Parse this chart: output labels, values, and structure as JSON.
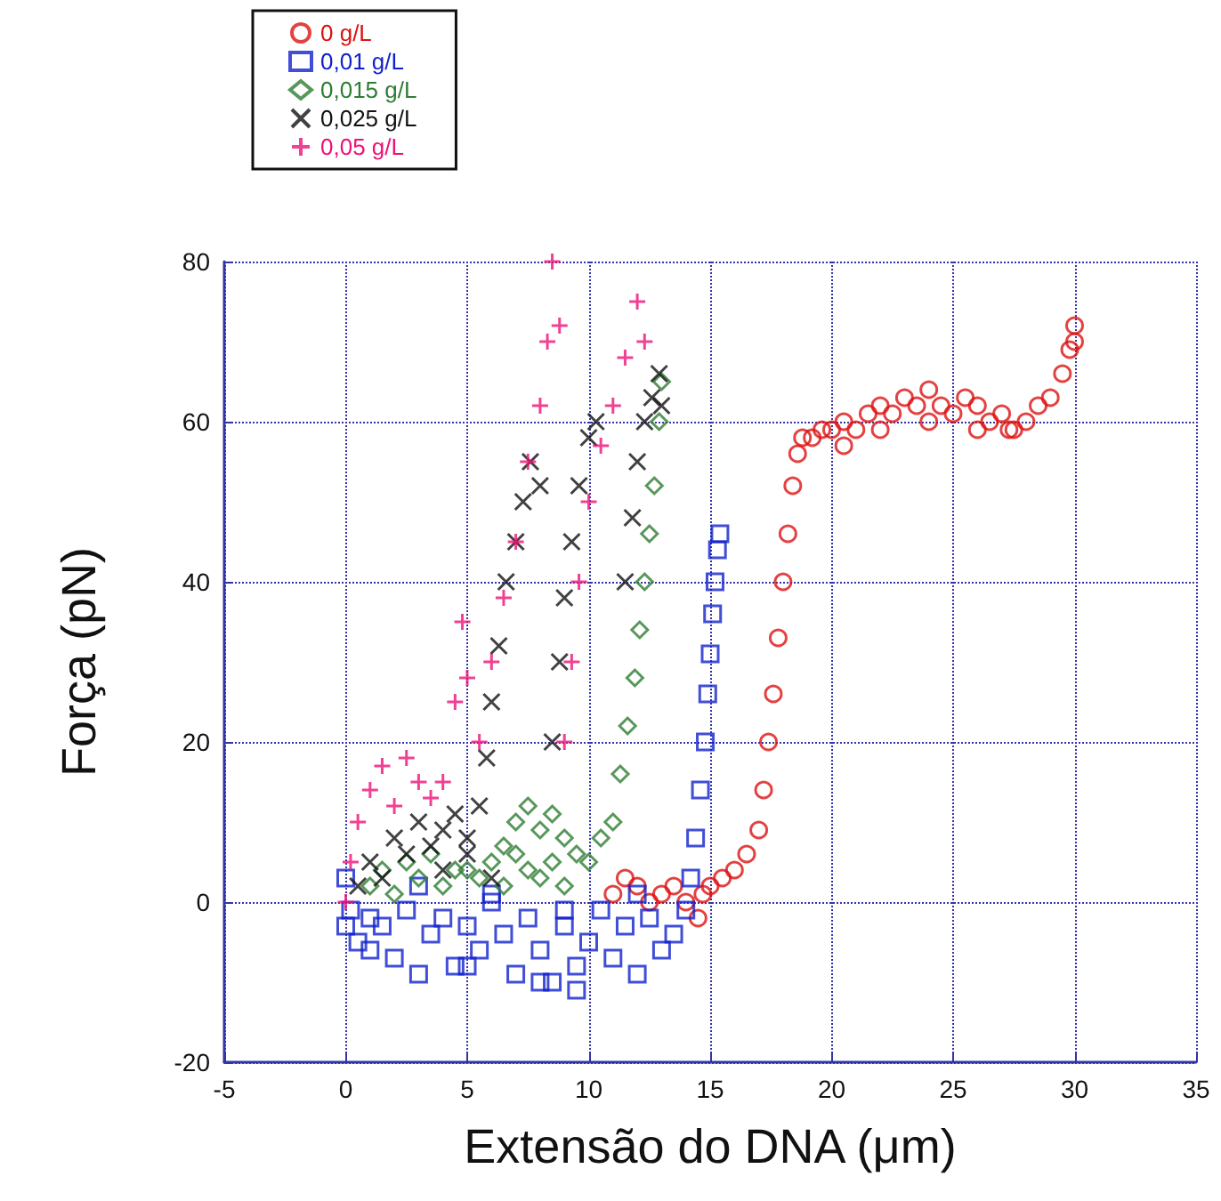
{
  "chart_data": {
    "type": "scatter",
    "xlabel": "Extensão do DNA (μm)",
    "ylabel": "Força (pN)",
    "xlim": [
      -5,
      35
    ],
    "xticks": [
      -5,
      0,
      5,
      10,
      15,
      20,
      25,
      30,
      35
    ],
    "ylim": [
      -20,
      80
    ],
    "yticks": [
      -20,
      0,
      20,
      40,
      60,
      80
    ],
    "grid": true,
    "legend": "top left",
    "series": [
      {
        "name": "0 g/L",
        "color": "#dd1111",
        "marker": "circle",
        "x": [
          11,
          11.5,
          12,
          12.5,
          13,
          13.5,
          14,
          14.5,
          14.7,
          15,
          15.5,
          16,
          16.5,
          17,
          17.2,
          17.4,
          17.6,
          17.8,
          18,
          18.2,
          18.4,
          18.6,
          18.8,
          19.2,
          19.6,
          20,
          20.5,
          21,
          21.5,
          22,
          22.5,
          23,
          23.5,
          24,
          24.5,
          25,
          25.5,
          26,
          26.5,
          27,
          27.5,
          28,
          28.5,
          29,
          29.5,
          29.8,
          30,
          30,
          20.5,
          22,
          24,
          26,
          27.3
        ],
        "values": [
          1,
          3,
          2,
          0,
          1,
          2,
          0,
          -2,
          1,
          2,
          3,
          4,
          6,
          9,
          14,
          20,
          26,
          33,
          40,
          46,
          52,
          56,
          58,
          58,
          59,
          59,
          60,
          59,
          61,
          62,
          61,
          63,
          62,
          64,
          62,
          61,
          63,
          62,
          60,
          61,
          59,
          60,
          62,
          63,
          66,
          69,
          72,
          70,
          57,
          59,
          60,
          59,
          59
        ]
      },
      {
        "name": "0,01 g/L",
        "color": "#1122cc",
        "marker": "square",
        "x": [
          0,
          0,
          0.2,
          0.5,
          1,
          1.5,
          2,
          2.5,
          3,
          3.5,
          4,
          4.5,
          5,
          5.5,
          6,
          6.5,
          7,
          7.5,
          8,
          8.5,
          9,
          9.5,
          10,
          10.5,
          11,
          11.5,
          12,
          12.5,
          13,
          13.5,
          14,
          14.2,
          14.4,
          14.6,
          14.8,
          14.9,
          15,
          15.1,
          15.2,
          15.3,
          15.4,
          3,
          6,
          9,
          12,
          1,
          5,
          8,
          9.5
        ],
        "values": [
          3,
          -3,
          -1,
          -5,
          -2,
          -3,
          -7,
          -1,
          -9,
          -4,
          -2,
          -8,
          -3,
          -6,
          0,
          -4,
          -9,
          -2,
          -6,
          -10,
          -3,
          -8,
          -5,
          -1,
          -7,
          -3,
          -9,
          -2,
          -6,
          -4,
          -1,
          3,
          8,
          14,
          20,
          26,
          31,
          36,
          40,
          44,
          46,
          2,
          1,
          -1,
          1,
          -6,
          -8,
          -10,
          -11
        ]
      },
      {
        "name": "0,015 g/L",
        "color": "#2e7d32",
        "marker": "diamond",
        "x": [
          1,
          1.5,
          2,
          2.5,
          3,
          3.5,
          4,
          4.5,
          5,
          5.5,
          6,
          6.5,
          7,
          7.5,
          8,
          8.5,
          9,
          9.5,
          10,
          10.5,
          11,
          11.3,
          11.6,
          11.9,
          12.1,
          12.3,
          12.5,
          12.7,
          12.9,
          13,
          6.5,
          7,
          7.5,
          8,
          8.5,
          9
        ],
        "values": [
          2,
          4,
          1,
          5,
          3,
          6,
          2,
          4,
          4,
          3,
          5,
          2,
          6,
          4,
          3,
          5,
          2,
          6,
          5,
          8,
          10,
          16,
          22,
          28,
          34,
          40,
          46,
          52,
          60,
          65,
          7,
          10,
          12,
          9,
          11,
          8
        ]
      },
      {
        "name": "0,025 g/L",
        "color": "#111111",
        "marker": "cross",
        "x": [
          0.5,
          1,
          1.5,
          2,
          2.5,
          3,
          3.5,
          4,
          4.5,
          5,
          5.5,
          5.8,
          6,
          6.3,
          6.6,
          7,
          7.3,
          7.6,
          8,
          8.5,
          8.8,
          9,
          9.3,
          9.6,
          10,
          10.3,
          11.5,
          11.8,
          12,
          12.3,
          12.6,
          12.9,
          13,
          4,
          5,
          6
        ],
        "values": [
          2,
          5,
          3,
          8,
          6,
          10,
          7,
          9,
          11,
          8,
          12,
          18,
          25,
          32,
          40,
          45,
          50,
          55,
          52,
          20,
          30,
          38,
          45,
          52,
          58,
          60,
          40,
          48,
          55,
          60,
          63,
          66,
          62,
          4,
          6,
          3
        ]
      },
      {
        "name": "0,05 g/L",
        "color": "#ee1177",
        "marker": "plus",
        "x": [
          0,
          0.2,
          0.5,
          1,
          1.5,
          2,
          2.5,
          3,
          3.5,
          4,
          4.5,
          4.8,
          5,
          5.5,
          6,
          6.5,
          7,
          7.5,
          8,
          8.3,
          8.5,
          8.8,
          9,
          9.3,
          9.6,
          10,
          10.5,
          11,
          11.5,
          12,
          12.3
        ],
        "values": [
          0,
          5,
          10,
          14,
          17,
          12,
          18,
          15,
          13,
          15,
          25,
          35,
          28,
          20,
          30,
          38,
          45,
          55,
          62,
          70,
          80,
          72,
          20,
          30,
          40,
          50,
          57,
          62,
          68,
          75,
          70
        ]
      }
    ]
  }
}
